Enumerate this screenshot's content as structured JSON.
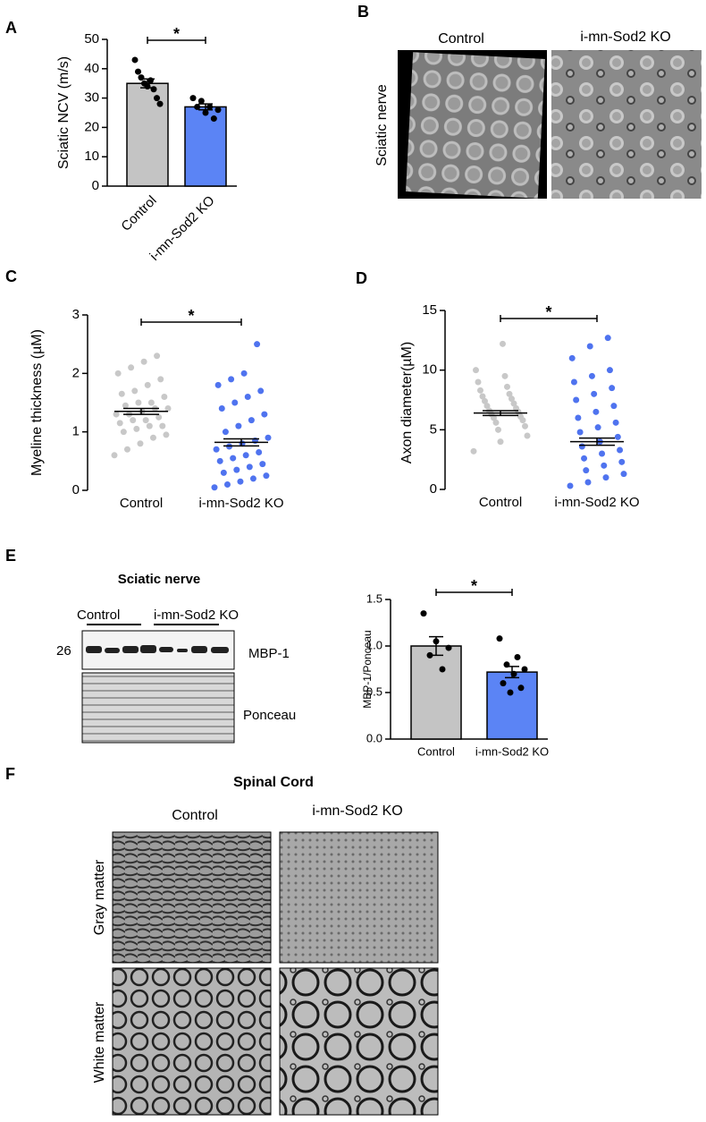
{
  "chart_data": [
    {
      "type": "bar",
      "y_label": "Sciatic NCV (m/s)",
      "categories": [
        "Control",
        "i-mn-Sod2 KO"
      ],
      "colors": [
        "#c4c4c4",
        "#5b84f5"
      ],
      "values": [
        35,
        27
      ],
      "errors": [
        1.5,
        1.0
      ],
      "points": [
        [
          43,
          39,
          37,
          35,
          34,
          36,
          33,
          30,
          28
        ],
        [
          30,
          29,
          27,
          26,
          27,
          25,
          23
        ]
      ],
      "ylim": [
        0,
        50
      ],
      "yticks": [
        0,
        10,
        20,
        30,
        40,
        50
      ],
      "significance": "*"
    },
    {
      "type": "dot",
      "y_label": "Myeline thickness (µM)",
      "categories": [
        "Control",
        "i-mn-Sod2 KO"
      ],
      "colors": [
        "#c8c8c8",
        "#4f73ef"
      ],
      "values": [
        1.35,
        0.82
      ],
      "errors": [
        0.05,
        0.06
      ],
      "points": [
        [
          0.6,
          0.7,
          0.8,
          0.9,
          0.95,
          1.0,
          1.05,
          1.1,
          1.1,
          1.15,
          1.2,
          1.2,
          1.25,
          1.3,
          1.3,
          1.35,
          1.4,
          1.4,
          1.45,
          1.5,
          1.5,
          1.6,
          1.65,
          1.7,
          1.8,
          1.9,
          2.0,
          2.1,
          2.2,
          2.3
        ],
        [
          0.05,
          0.1,
          0.15,
          0.2,
          0.25,
          0.3,
          0.35,
          0.4,
          0.45,
          0.5,
          0.55,
          0.6,
          0.65,
          0.7,
          0.75,
          0.8,
          0.85,
          0.9,
          1.0,
          1.1,
          1.2,
          1.3,
          1.4,
          1.5,
          1.6,
          1.7,
          1.8,
          1.9,
          2.0,
          2.5
        ]
      ],
      "ylim": [
        0,
        3
      ],
      "yticks": [
        0,
        1,
        2,
        3
      ],
      "significance": "*"
    },
    {
      "type": "dot",
      "y_label": "Axon diameter(µM)",
      "categories": [
        "Control",
        "i-mn-Sod2 KO"
      ],
      "colors": [
        "#c8c8c8",
        "#4f73ef"
      ],
      "values": [
        6.4,
        4.0
      ],
      "errors": [
        0.2,
        0.3
      ],
      "points": [
        [
          3.2,
          4.0,
          4.5,
          5.0,
          5.3,
          5.6,
          5.8,
          6.0,
          6.1,
          6.3,
          6.5,
          6.6,
          6.8,
          7.0,
          7.2,
          7.4,
          7.6,
          7.8,
          8.0,
          8.3,
          8.6,
          9.0,
          9.5,
          10.0,
          12.2
        ],
        [
          0.3,
          0.6,
          1.0,
          1.3,
          1.6,
          2.0,
          2.3,
          2.6,
          3.0,
          3.3,
          3.6,
          4.0,
          4.4,
          4.8,
          5.2,
          5.6,
          6.0,
          6.5,
          7.0,
          7.5,
          8.0,
          8.5,
          9.0,
          9.5,
          10.0,
          11.0,
          12.0,
          12.7
        ]
      ],
      "ylim": [
        0,
        15
      ],
      "yticks": [
        0,
        5,
        10,
        15
      ],
      "significance": "*"
    },
    {
      "type": "bar",
      "y_label": "MBP-1/Ponceau",
      "categories": [
        "Control",
        "i-mn-Sod2 KO"
      ],
      "colors": [
        "#c4c4c4",
        "#5b84f5"
      ],
      "values": [
        1.0,
        0.72
      ],
      "errors": [
        0.1,
        0.06
      ],
      "points": [
        [
          1.35,
          1.05,
          0.98,
          0.9,
          0.75
        ],
        [
          1.08,
          0.88,
          0.8,
          0.75,
          0.7,
          0.6,
          0.55,
          0.5
        ]
      ],
      "ylim": [
        0,
        1.5
      ],
      "yticks": [
        {
          "value": 0,
          "label": "0.0"
        },
        {
          "value": 0.5,
          "label": "0.5"
        },
        {
          "value": 1,
          "label": "1.0"
        },
        {
          "value": 1.5,
          "label": "1.5"
        }
      ],
      "significance": "*"
    }
  ],
  "panels": {
    "letters": [
      "A",
      "B",
      "C",
      "D",
      "E",
      "F"
    ],
    "b": {
      "control": "Control",
      "ko": "i-mn-Sod2 KO",
      "row": "Sciatic nerve"
    },
    "e": {
      "title": "Sciatic nerve",
      "control": "Control",
      "ko": "i-mn-Sod2 KO",
      "marker": "26",
      "band1": "MBP-1",
      "band2": "Ponceau"
    },
    "f": {
      "title": "Spinal Cord",
      "control": "Control",
      "ko": "i-mn-Sod2 KO",
      "row1": "Gray matter",
      "row2": "White matter"
    }
  }
}
